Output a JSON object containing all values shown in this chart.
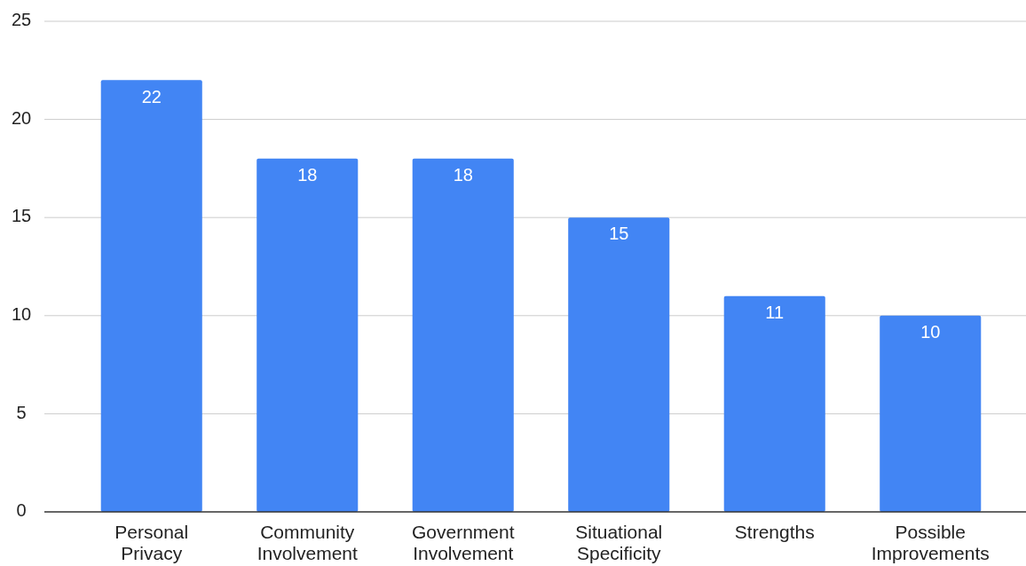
{
  "chart_data": {
    "type": "bar",
    "categories": [
      "Personal Privacy",
      "Community Involvement",
      "Government Involvement",
      "Situational Specificity",
      "Strengths",
      "Possible Improvements"
    ],
    "values": [
      22,
      18,
      18,
      15,
      11,
      10
    ],
    "color": "#4285f4",
    "ylim": [
      0,
      25
    ],
    "yticks": [
      0,
      5,
      10,
      15,
      20,
      25
    ],
    "grid": "y",
    "data_labels": true
  }
}
